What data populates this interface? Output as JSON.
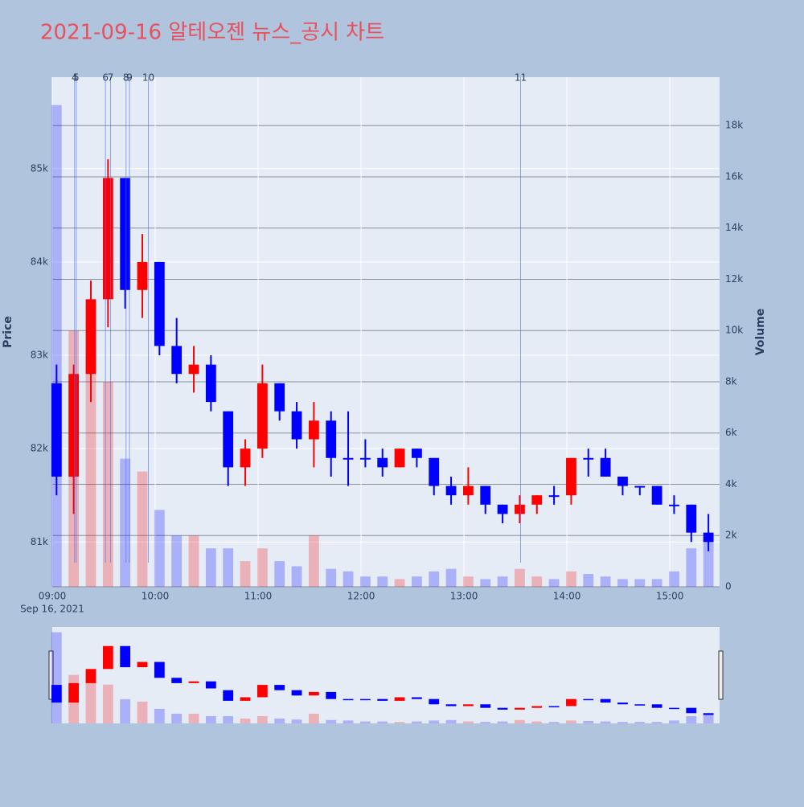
{
  "chart_data": {
    "type": "candlestick",
    "title": "2021-09-16 알테오젠 뉴스_공시 차트",
    "y_label": "Price",
    "y2_label": "Volume",
    "x_date_label": "Sep 16, 2021",
    "increasing_color": "#ff0000",
    "decreasing_color": "#0000ff",
    "x": [
      "09:00",
      "09:10",
      "09:20",
      "09:30",
      "09:40",
      "09:50",
      "10:00",
      "10:10",
      "10:20",
      "10:30",
      "10:40",
      "10:50",
      "11:00",
      "11:10",
      "11:20",
      "11:30",
      "11:40",
      "11:50",
      "12:00",
      "12:10",
      "12:20",
      "12:30",
      "12:40",
      "12:50",
      "13:00",
      "13:10",
      "13:20",
      "13:30",
      "13:40",
      "13:50",
      "14:00",
      "14:10",
      "14:20",
      "14:30",
      "14:40",
      "14:50",
      "15:00",
      "15:10",
      "15:20"
    ],
    "open": [
      82700,
      81700,
      82800,
      83600,
      84900,
      83700,
      84000,
      83100,
      82800,
      82900,
      82400,
      81800,
      82000,
      82700,
      82400,
      82100,
      82300,
      81900,
      81900,
      81900,
      81800,
      82000,
      81900,
      81600,
      81500,
      81600,
      81400,
      81300,
      81400,
      81500,
      81500,
      81900,
      81900,
      81700,
      81600,
      81600,
      81400,
      81400,
      81100
    ],
    "high": [
      82900,
      82900,
      83800,
      85100,
      84900,
      84300,
      84000,
      83400,
      83100,
      83000,
      82400,
      82100,
      82900,
      82700,
      82500,
      82500,
      82400,
      82400,
      82100,
      82000,
      82000,
      82000,
      81900,
      81700,
      81800,
      81600,
      81400,
      81500,
      81500,
      81600,
      81900,
      82000,
      82000,
      81700,
      81600,
      81600,
      81500,
      81400,
      81300
    ],
    "low": [
      81500,
      81300,
      82500,
      83300,
      83500,
      83400,
      83000,
      82700,
      82600,
      82400,
      81600,
      81600,
      81900,
      82300,
      82000,
      81800,
      81700,
      81600,
      81800,
      81700,
      81800,
      81800,
      81500,
      81400,
      81400,
      81300,
      81200,
      81200,
      81300,
      81400,
      81400,
      81700,
      81700,
      81500,
      81500,
      81400,
      81300,
      81000,
      80900
    ],
    "close": [
      81700,
      82800,
      83600,
      84900,
      83700,
      84000,
      83100,
      82800,
      82900,
      82500,
      81800,
      82000,
      82700,
      82400,
      82100,
      82300,
      81900,
      81900,
      81900,
      81800,
      82000,
      81900,
      81600,
      81500,
      81600,
      81400,
      81300,
      81400,
      81500,
      81500,
      81900,
      81900,
      81700,
      81600,
      81600,
      81400,
      81400,
      81100,
      81000
    ],
    "volume": [
      18800,
      10000,
      9000,
      8000,
      5000,
      4500,
      3000,
      2000,
      2000,
      1500,
      1500,
      1000,
      1500,
      1000,
      800,
      2000,
      700,
      600,
      400,
      400,
      300,
      400,
      600,
      700,
      400,
      300,
      400,
      700,
      400,
      300,
      600,
      500,
      400,
      300,
      300,
      300,
      600,
      1500,
      2000
    ],
    "xlim": [
      "09:00",
      "15:29"
    ],
    "xticks": [
      "09:00",
      "10:00",
      "11:00",
      "12:00",
      "13:00",
      "14:00",
      "15:00"
    ],
    "ylim": [
      80520,
      85980
    ],
    "yticks": [
      {
        "value": 81000,
        "label": "81k"
      },
      {
        "value": 82000,
        "label": "82k"
      },
      {
        "value": 83000,
        "label": "83k"
      },
      {
        "value": 84000,
        "label": "84k"
      },
      {
        "value": 85000,
        "label": "85k"
      }
    ],
    "y2lim": [
      0,
      19890
    ],
    "y2ticks": [
      0,
      {
        "value": 2000,
        "label": "2k"
      },
      {
        "value": 4000,
        "label": "4k"
      },
      {
        "value": 6000,
        "label": "6k"
      },
      {
        "value": 8000,
        "label": "8k"
      },
      {
        "value": 10000,
        "label": "10k"
      },
      {
        "value": 12000,
        "label": "12k"
      },
      {
        "value": 14000,
        "label": "14k"
      },
      {
        "value": 16000,
        "label": "16k"
      },
      {
        "value": 18000,
        "label": "18k"
      }
    ],
    "events": [
      {
        "x": "09:13",
        "label": "4"
      },
      {
        "x": "09:14",
        "label": "5"
      },
      {
        "x": "09:31",
        "label": "6"
      },
      {
        "x": "09:34",
        "label": "7"
      },
      {
        "x": "09:43",
        "label": "8"
      },
      {
        "x": "09:45",
        "label": "9"
      },
      {
        "x": "09:56",
        "label": "10"
      },
      {
        "x": "13:33",
        "label": "11"
      }
    ]
  }
}
